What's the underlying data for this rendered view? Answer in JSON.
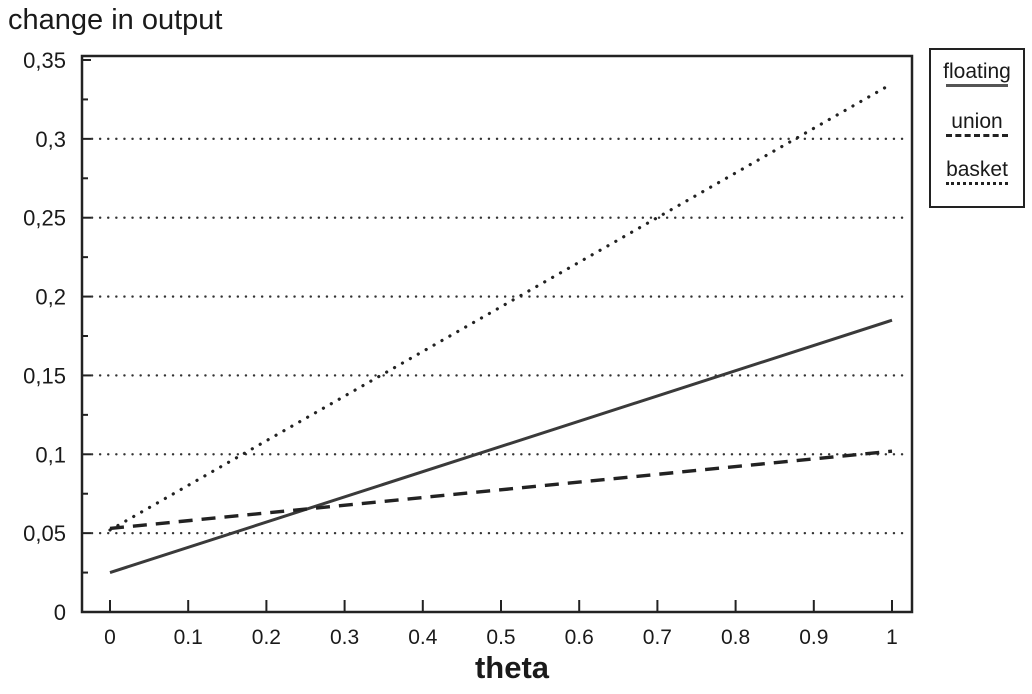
{
  "chart_data": {
    "type": "line",
    "ylabel": "change in output",
    "xlabel": "theta",
    "xlim": [
      0,
      1
    ],
    "ylim": [
      0,
      0.35
    ],
    "x_ticks": [
      0,
      0.1,
      0.2,
      0.3,
      0.4,
      0.5,
      0.6,
      0.7,
      0.8,
      0.9,
      1
    ],
    "x_tick_labels": [
      "0",
      "0.1",
      "0.2",
      "0.3",
      "0.4",
      "0.5",
      "0.6",
      "0.7",
      "0.8",
      "0.9",
      "1"
    ],
    "y_ticks": [
      0,
      0.05,
      0.1,
      0.15,
      0.2,
      0.25,
      0.3,
      0.35
    ],
    "y_tick_labels": [
      "0",
      "0,05",
      "0,1",
      "0,15",
      "0,2",
      "0,25",
      "0,3",
      "0,35"
    ],
    "grid": {
      "horizontal": true,
      "style": "dotted",
      "values": [
        0.05,
        0.1,
        0.15,
        0.2,
        0.25,
        0.3
      ]
    },
    "legend_position": "outside-top-right",
    "series": [
      {
        "name": "floating",
        "style": "solid",
        "color": "#3a3a3a",
        "x": [
          0,
          1
        ],
        "y": [
          0.025,
          0.185
        ]
      },
      {
        "name": "union",
        "style": "dashed",
        "color": "#222222",
        "x": [
          0,
          1
        ],
        "y": [
          0.053,
          0.102
        ]
      },
      {
        "name": "basket",
        "style": "dotted",
        "color": "#222222",
        "x": [
          0,
          1
        ],
        "y": [
          0.052,
          0.335
        ]
      }
    ]
  }
}
